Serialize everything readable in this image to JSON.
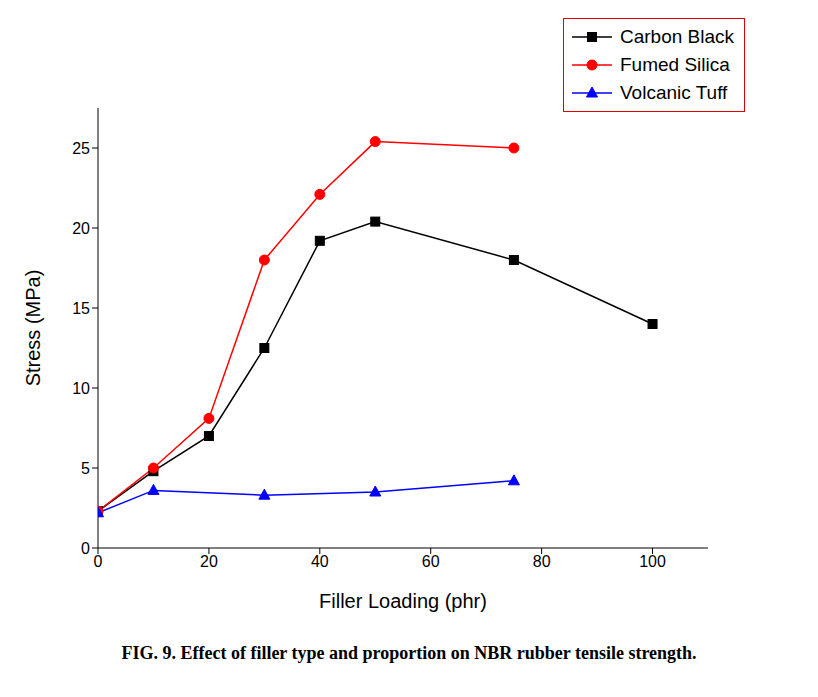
{
  "chart_data": {
    "type": "line",
    "title": "FIG. 9. Effect of filler type and proportion on NBR rubber tensile strength.",
    "x_label": "Filler Loading (phr)",
    "y_label": "Stress (MPa)",
    "xlim": [
      0,
      110
    ],
    "xticks": [
      0,
      20,
      40,
      60,
      80,
      100
    ],
    "ylim": [
      0,
      27.5
    ],
    "yticks": [
      0,
      5,
      10,
      15,
      20,
      25
    ],
    "grid": false,
    "legend": "upper right",
    "series": [
      {
        "name": "Carbon Black",
        "color": "#000000",
        "marker": "square",
        "x": [
          0,
          10,
          20,
          30,
          40,
          50,
          75,
          100
        ],
        "values": [
          2.3,
          4.8,
          7.0,
          12.5,
          19.2,
          20.4,
          18.0,
          14.0
        ]
      },
      {
        "name": "Fumed Silica",
        "color": "#ff0000",
        "marker": "circle",
        "x": [
          0,
          10,
          20,
          30,
          40,
          50,
          75
        ],
        "values": [
          2.3,
          5.0,
          8.1,
          18.0,
          22.1,
          25.4,
          25.0
        ]
      },
      {
        "name": "Volcanic Tuff",
        "color": "#0000ff",
        "marker": "triangle",
        "x": [
          0,
          10,
          30,
          50,
          75
        ],
        "values": [
          2.2,
          3.6,
          3.3,
          3.5,
          4.2
        ]
      }
    ]
  }
}
